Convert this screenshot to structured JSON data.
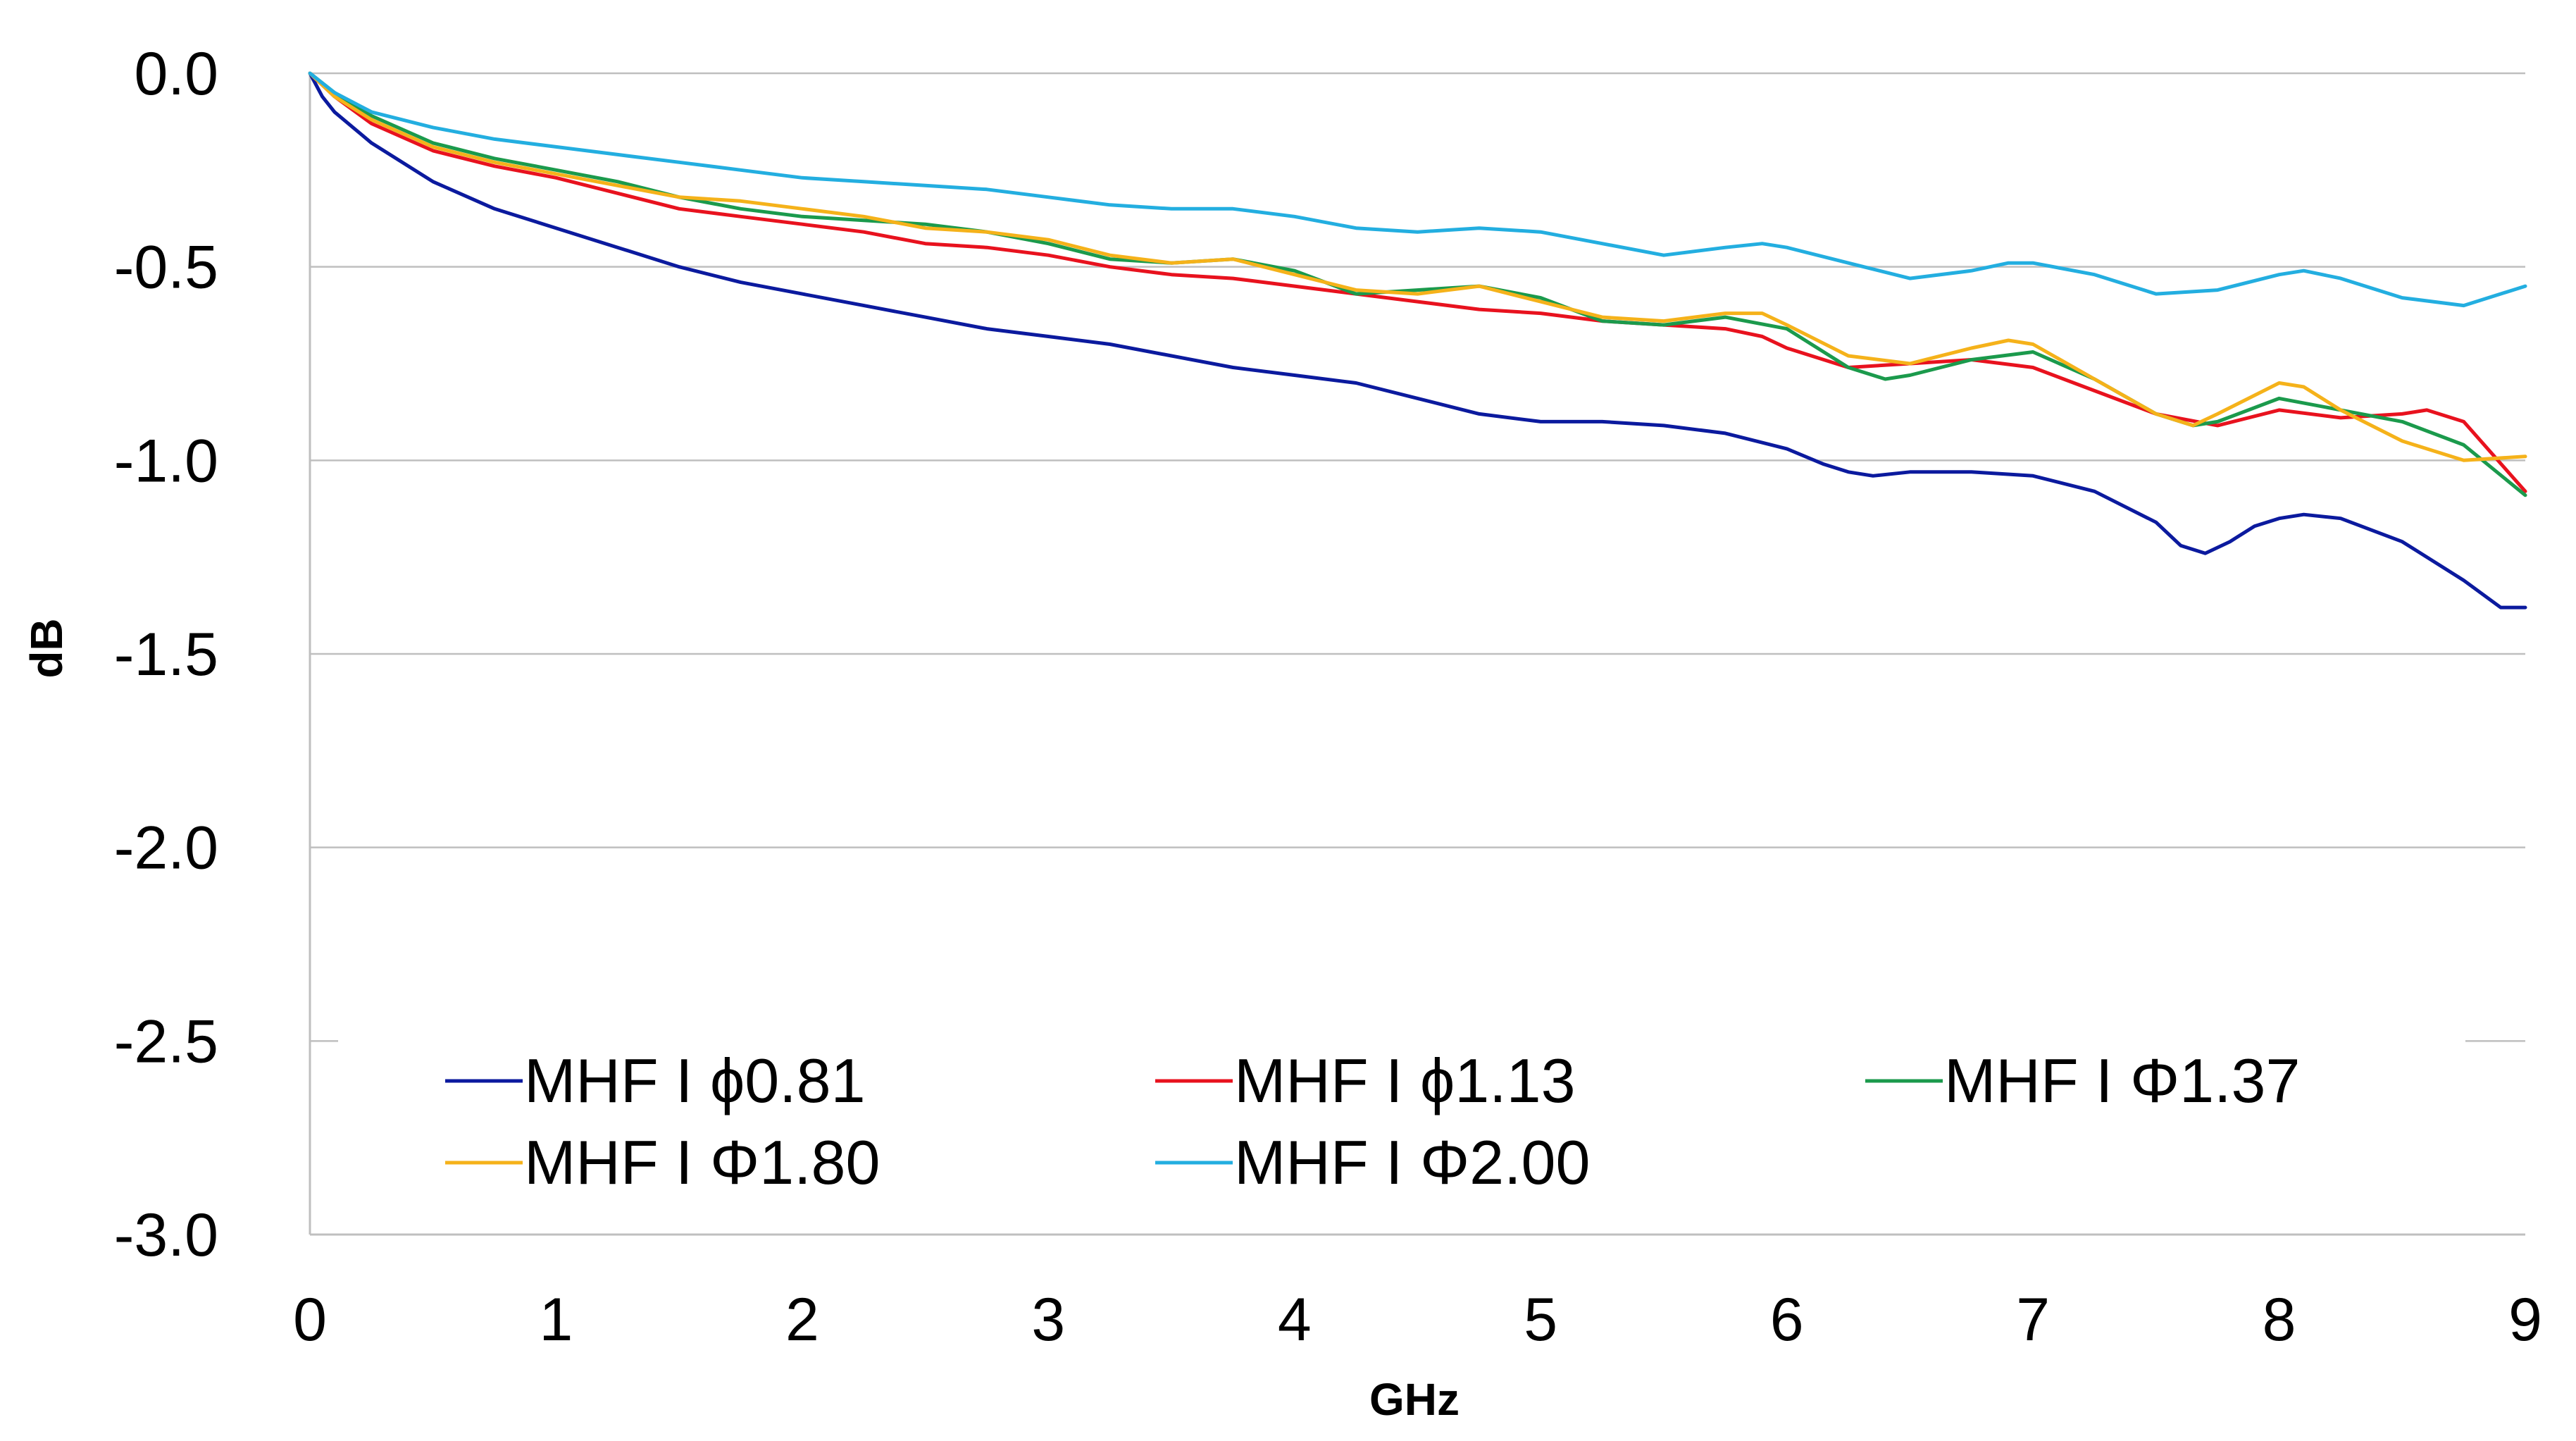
{
  "chart_data": {
    "type": "line",
    "title": "",
    "xlabel": "GHz",
    "ylabel": "dB",
    "xlim": [
      0,
      9
    ],
    "ylim": [
      -3.0,
      0.0
    ],
    "x_ticks": [
      "0",
      "1",
      "2",
      "3",
      "4",
      "5",
      "6",
      "7",
      "8",
      "9"
    ],
    "y_ticks": [
      "0.0",
      "-0.5",
      "-1.0",
      "-1.5",
      "-2.0",
      "-2.5",
      "-3.0"
    ],
    "grid": "horizontal",
    "legend_position": "bottom-inside",
    "series": [
      {
        "name": "MHF I ϕ0.81",
        "color": "#0b1a9e",
        "x": [
          0,
          0.05,
          0.1,
          0.25,
          0.5,
          0.75,
          1.0,
          1.25,
          1.5,
          1.75,
          2.0,
          2.25,
          2.5,
          2.75,
          3.0,
          3.25,
          3.5,
          3.75,
          4.0,
          4.25,
          4.5,
          4.75,
          5.0,
          5.25,
          5.5,
          5.75,
          6.0,
          6.15,
          6.25,
          6.35,
          6.5,
          6.75,
          7.0,
          7.25,
          7.5,
          7.6,
          7.7,
          7.8,
          7.9,
          8.0,
          8.1,
          8.25,
          8.5,
          8.75,
          8.9,
          9.0
        ],
        "values": [
          0.0,
          -0.06,
          -0.1,
          -0.18,
          -0.28,
          -0.35,
          -0.4,
          -0.45,
          -0.5,
          -0.54,
          -0.57,
          -0.6,
          -0.63,
          -0.66,
          -0.68,
          -0.7,
          -0.73,
          -0.76,
          -0.78,
          -0.8,
          -0.84,
          -0.88,
          -0.9,
          -0.9,
          -0.91,
          -0.93,
          -0.97,
          -1.01,
          -1.03,
          -1.04,
          -1.03,
          -1.03,
          -1.04,
          -1.08,
          -1.16,
          -1.22,
          -1.24,
          -1.21,
          -1.17,
          -1.15,
          -1.14,
          -1.15,
          -1.21,
          -1.31,
          -1.38,
          -1.38
        ]
      },
      {
        "name": "MHF I ϕ1.13",
        "color": "#e8121e",
        "x": [
          0,
          0.1,
          0.25,
          0.5,
          0.75,
          1.0,
          1.25,
          1.5,
          1.75,
          2.0,
          2.25,
          2.5,
          2.75,
          3.0,
          3.25,
          3.5,
          3.75,
          4.0,
          4.25,
          4.5,
          4.75,
          5.0,
          5.25,
          5.5,
          5.75,
          5.9,
          6.0,
          6.25,
          6.5,
          6.75,
          7.0,
          7.25,
          7.5,
          7.75,
          8.0,
          8.25,
          8.5,
          8.6,
          8.75,
          9.0
        ],
        "values": [
          0.0,
          -0.06,
          -0.13,
          -0.2,
          -0.24,
          -0.27,
          -0.31,
          -0.35,
          -0.37,
          -0.39,
          -0.41,
          -0.44,
          -0.45,
          -0.47,
          -0.5,
          -0.52,
          -0.53,
          -0.55,
          -0.57,
          -0.59,
          -0.61,
          -0.62,
          -0.64,
          -0.65,
          -0.66,
          -0.68,
          -0.71,
          -0.76,
          -0.75,
          -0.74,
          -0.76,
          -0.82,
          -0.88,
          -0.91,
          -0.87,
          -0.89,
          -0.88,
          -0.87,
          -0.9,
          -1.08
        ]
      },
      {
        "name": "MHF I Φ1.37",
        "color": "#1b9a4c",
        "x": [
          0,
          0.1,
          0.25,
          0.5,
          0.75,
          1.0,
          1.25,
          1.5,
          1.75,
          2.0,
          2.25,
          2.5,
          2.75,
          3.0,
          3.25,
          3.5,
          3.75,
          4.0,
          4.25,
          4.5,
          4.75,
          5.0,
          5.25,
          5.5,
          5.75,
          6.0,
          6.25,
          6.4,
          6.5,
          6.75,
          7.0,
          7.25,
          7.5,
          7.65,
          7.75,
          8.0,
          8.25,
          8.5,
          8.75,
          9.0
        ],
        "values": [
          0.0,
          -0.05,
          -0.11,
          -0.18,
          -0.22,
          -0.25,
          -0.28,
          -0.32,
          -0.35,
          -0.37,
          -0.38,
          -0.39,
          -0.41,
          -0.44,
          -0.48,
          -0.49,
          -0.48,
          -0.51,
          -0.57,
          -0.56,
          -0.55,
          -0.58,
          -0.64,
          -0.65,
          -0.63,
          -0.66,
          -0.76,
          -0.79,
          -0.78,
          -0.74,
          -0.72,
          -0.79,
          -0.88,
          -0.91,
          -0.9,
          -0.84,
          -0.87,
          -0.9,
          -0.96,
          -1.09
        ]
      },
      {
        "name": "MHF I Φ1.80",
        "color": "#f5b21a",
        "x": [
          0,
          0.1,
          0.25,
          0.5,
          0.75,
          1.0,
          1.25,
          1.5,
          1.75,
          2.0,
          2.25,
          2.5,
          2.75,
          3.0,
          3.25,
          3.5,
          3.75,
          4.0,
          4.25,
          4.5,
          4.75,
          5.0,
          5.25,
          5.5,
          5.75,
          5.9,
          6.0,
          6.25,
          6.5,
          6.75,
          6.9,
          7.0,
          7.25,
          7.5,
          7.65,
          7.75,
          8.0,
          8.1,
          8.25,
          8.5,
          8.75,
          9.0
        ],
        "values": [
          0.0,
          -0.06,
          -0.12,
          -0.19,
          -0.23,
          -0.26,
          -0.29,
          -0.32,
          -0.33,
          -0.35,
          -0.37,
          -0.4,
          -0.41,
          -0.43,
          -0.47,
          -0.49,
          -0.48,
          -0.52,
          -0.56,
          -0.57,
          -0.55,
          -0.59,
          -0.63,
          -0.64,
          -0.62,
          -0.62,
          -0.65,
          -0.73,
          -0.75,
          -0.71,
          -0.69,
          -0.7,
          -0.79,
          -0.88,
          -0.91,
          -0.88,
          -0.8,
          -0.81,
          -0.87,
          -0.95,
          -1.0,
          -0.99
        ]
      },
      {
        "name": "MHF I Φ2.00",
        "color": "#23aee0",
        "x": [
          0,
          0.1,
          0.25,
          0.5,
          0.75,
          1.0,
          1.25,
          1.5,
          1.75,
          2.0,
          2.25,
          2.5,
          2.75,
          3.0,
          3.25,
          3.5,
          3.75,
          4.0,
          4.25,
          4.5,
          4.75,
          5.0,
          5.25,
          5.5,
          5.75,
          5.9,
          6.0,
          6.25,
          6.5,
          6.75,
          6.9,
          7.0,
          7.25,
          7.5,
          7.75,
          8.0,
          8.1,
          8.25,
          8.5,
          8.75,
          9.0
        ],
        "values": [
          0.0,
          -0.05,
          -0.1,
          -0.14,
          -0.17,
          -0.19,
          -0.21,
          -0.23,
          -0.25,
          -0.27,
          -0.28,
          -0.29,
          -0.3,
          -0.32,
          -0.34,
          -0.35,
          -0.35,
          -0.37,
          -0.4,
          -0.41,
          -0.4,
          -0.41,
          -0.44,
          -0.47,
          -0.45,
          -0.44,
          -0.45,
          -0.49,
          -0.53,
          -0.51,
          -0.49,
          -0.49,
          -0.52,
          -0.57,
          -0.56,
          -0.52,
          -0.51,
          -0.53,
          -0.58,
          -0.6,
          -0.55
        ]
      }
    ]
  }
}
